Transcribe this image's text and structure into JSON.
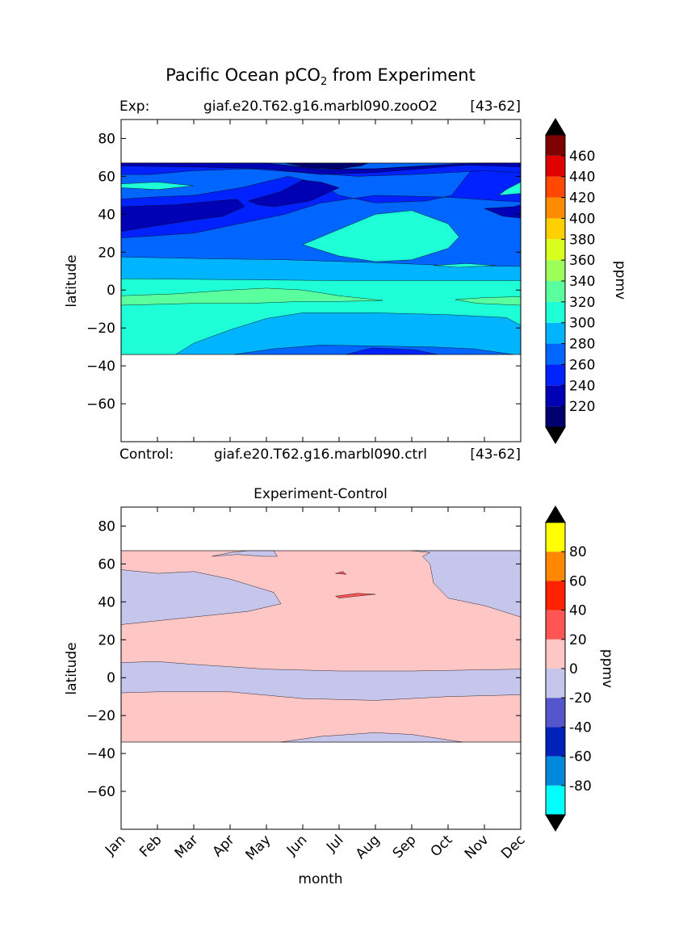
{
  "figure": {
    "title_main": "Pacific Ocean pCO",
    "title_sub": "2",
    "title_tail": " from Experiment"
  },
  "chart_data": [
    {
      "type": "heatmap",
      "name": "experiment",
      "header_left": "Exp:",
      "header_center": "giaf.e20.T62.g16.marbl090.zooO2",
      "header_right": "[43-62]",
      "footer_left": "Control:",
      "footer_center": "giaf.e20.T62.g16.marbl090.ctrl",
      "footer_right": "[43-62]",
      "ylabel": "latitude",
      "ylim": [
        -80,
        90
      ],
      "yticks": [
        80,
        60,
        40,
        20,
        0,
        -20,
        -40,
        -60
      ],
      "xlim": [
        1,
        12
      ],
      "data_lat_range": [
        -34,
        67
      ],
      "colorbar_label": "ppmv",
      "levels": [
        200,
        220,
        240,
        260,
        280,
        300,
        320,
        340,
        360,
        380,
        400,
        420,
        440,
        460,
        480
      ],
      "colorbar_ticks": [
        220,
        240,
        260,
        280,
        300,
        320,
        340,
        360,
        380,
        400,
        420,
        440,
        460
      ],
      "colors": [
        "#00006f",
        "#0000b4",
        "#0022ff",
        "#0066ff",
        "#00b4ff",
        "#1effd8",
        "#5aff9e",
        "#9eff5a",
        "#d8ff1e",
        "#ffd000",
        "#ff8c00",
        "#ff4800",
        "#e00000",
        "#7f0000"
      ],
      "under_color": "#000000",
      "over_color": "#000000",
      "bands": [
        {
          "level": 300,
          "label": "280-300",
          "points": [
            [
              1,
              -34
            ],
            [
              12,
              -34
            ],
            [
              12,
              67
            ],
            [
              1,
              67
            ]
          ]
        },
        {
          "level": 280,
          "label": "260-280",
          "points": [
            [
              4.1,
              -34
            ],
            [
              5.2,
              -31
            ],
            [
              6.5,
              -29
            ],
            [
              8,
              -29.5
            ],
            [
              9.5,
              -30
            ],
            [
              10.7,
              -31
            ],
            [
              11.8,
              -34
            ]
          ]
        },
        {
          "level": 260,
          "label": "240-260",
          "points": [
            [
              7.2,
              -34
            ],
            [
              7.9,
              -30.5
            ],
            [
              9.1,
              -31.5
            ],
            [
              9.7,
              -34
            ]
          ]
        },
        {
          "level": 280,
          "label": "260-280",
          "points": [
            [
              1,
              17.5
            ],
            [
              3.5,
              16.5
            ],
            [
              5.5,
              16
            ],
            [
              8,
              14.5
            ],
            [
              10,
              13
            ],
            [
              12,
              12.5
            ],
            [
              12,
              67
            ],
            [
              1,
              67
            ]
          ]
        },
        {
          "level": 260,
          "label": "240-260",
          "points": [
            [
              1,
              27.5
            ],
            [
              3,
              30
            ],
            [
              4.5,
              36
            ],
            [
              5.5,
              40
            ],
            [
              6.5,
              46
            ],
            [
              8,
              50
            ],
            [
              10,
              49
            ],
            [
              11.5,
              47
            ],
            [
              12,
              46.5
            ],
            [
              12,
              67
            ],
            [
              10.8,
              67
            ],
            [
              10.5,
              60
            ],
            [
              10.1,
              50
            ],
            [
              9.4,
              47
            ],
            [
              8,
              46
            ],
            [
              7,
              50
            ],
            [
              6.5,
              56
            ],
            [
              5.6,
              60
            ],
            [
              4.3,
              54
            ],
            [
              3,
              50
            ],
            [
              1.8,
              49
            ],
            [
              1,
              48
            ]
          ]
        },
        {
          "level": 260,
          "label": "240-260",
          "points": [
            [
              1,
              67
            ],
            [
              5,
              67
            ],
            [
              6.5,
              64
            ],
            [
              8,
              64
            ],
            [
              10.5,
              67
            ],
            [
              12,
              67
            ],
            [
              12,
              62
            ],
            [
              11,
              63
            ],
            [
              9,
              61
            ],
            [
              7.5,
              60
            ],
            [
              6,
              62
            ],
            [
              4.5,
              64
            ],
            [
              3,
              63
            ],
            [
              1.8,
              61
            ],
            [
              1,
              61
            ]
          ]
        },
        {
          "level": 240,
          "label": "220-240",
          "points": [
            [
              1,
              31
            ],
            [
              2,
              34
            ],
            [
              3,
              37
            ],
            [
              3.8,
              39
            ],
            [
              4.4,
              44
            ],
            [
              4.2,
              48
            ],
            [
              2.5,
              45
            ],
            [
              1,
              44
            ]
          ]
        },
        {
          "level": 240,
          "label": "220-240",
          "points": [
            [
              4.5,
              47
            ],
            [
              5.4,
              52
            ],
            [
              6,
              58
            ],
            [
              6.5,
              57
            ],
            [
              7,
              54
            ],
            [
              6.2,
              47
            ],
            [
              5.2,
              44
            ],
            [
              4.8,
              45
            ]
          ]
        },
        {
          "level": 240,
          "label": "220-240",
          "points": [
            [
              11,
              43
            ],
            [
              11.8,
              44
            ],
            [
              12,
              45
            ],
            [
              12,
              38
            ],
            [
              11.5,
              39
            ]
          ]
        },
        {
          "level": 240,
          "label": "220-240",
          "points": [
            [
              1,
              67
            ],
            [
              5,
              67
            ],
            [
              6.5,
              63.5
            ],
            [
              8,
              64
            ],
            [
              11,
              67
            ],
            [
              12,
              67
            ],
            [
              12,
              65
            ],
            [
              10.5,
              66
            ],
            [
              8,
              62
            ],
            [
              6.5,
              61
            ],
            [
              5,
              64
            ],
            [
              3,
              65
            ],
            [
              1,
              65.5
            ]
          ]
        },
        {
          "level": 220,
          "label": "200-220",
          "points": [
            [
              5.5,
              67
            ],
            [
              6.2,
              64.5
            ],
            [
              7,
              64
            ],
            [
              7.6,
              65.5
            ],
            [
              7.8,
              67
            ]
          ]
        },
        {
          "level": 320,
          "label": "300-320",
          "points": [
            [
              1,
              6
            ],
            [
              4,
              5.5
            ],
            [
              7,
              5
            ],
            [
              12,
              5
            ],
            [
              12,
              -18.5
            ],
            [
              11.6,
              -14.5
            ],
            [
              10,
              -13
            ],
            [
              8,
              -12
            ],
            [
              6,
              -12
            ],
            [
              5,
              -15
            ],
            [
              4,
              -21
            ],
            [
              3,
              -28
            ],
            [
              2.5,
              -34
            ],
            [
              1,
              -34
            ]
          ]
        },
        {
          "level": 340,
          "label": "320-340",
          "points": [
            [
              1,
              -3
            ],
            [
              2.5,
              -2
            ],
            [
              4,
              0
            ],
            [
              5,
              1
            ],
            [
              6,
              0
            ],
            [
              7,
              -3
            ],
            [
              8.2,
              -5.5
            ],
            [
              7,
              -6
            ],
            [
              6,
              -6
            ],
            [
              4.5,
              -7
            ],
            [
              3,
              -7
            ],
            [
              1,
              -8
            ]
          ]
        },
        {
          "level": 340,
          "label": "320-340",
          "points": [
            [
              10.2,
              -5
            ],
            [
              11,
              -4
            ],
            [
              12,
              -3.5
            ],
            [
              12,
              -8
            ],
            [
              10.8,
              -7
            ]
          ]
        },
        {
          "level": 320,
          "label": "300-320",
          "points": [
            [
              6,
              24
            ],
            [
              7,
              32
            ],
            [
              8,
              40
            ],
            [
              9,
              42
            ],
            [
              10,
              35
            ],
            [
              10.3,
              28
            ],
            [
              10,
              22
            ],
            [
              9,
              16
            ],
            [
              8,
              15
            ],
            [
              7,
              18
            ]
          ]
        },
        {
          "level": 320,
          "label": "300-320",
          "points": [
            [
              9.6,
              13
            ],
            [
              10.5,
              14
            ],
            [
              11.3,
              13
            ],
            [
              10.3,
              12
            ]
          ]
        },
        {
          "level": 320,
          "label": "300-320",
          "points": [
            [
              1,
              56
            ],
            [
              2,
              57
            ],
            [
              3,
              55
            ],
            [
              2,
              53
            ],
            [
              1,
              54
            ]
          ]
        },
        {
          "level": 320,
          "label": "300-320",
          "points": [
            [
              11.4,
              50
            ],
            [
              12,
              51
            ],
            [
              12,
              57
            ],
            [
              11.6,
              53
            ]
          ]
        }
      ]
    },
    {
      "type": "heatmap",
      "name": "difference",
      "title": "Experiment-Control",
      "xlabel": "month",
      "ylabel": "latitude",
      "xlim": [
        1,
        12
      ],
      "ylim": [
        -80,
        90
      ],
      "yticks": [
        80,
        60,
        40,
        20,
        0,
        -20,
        -40,
        -60
      ],
      "xticks": [
        "Jan",
        "Feb",
        "Mar",
        "Apr",
        "May",
        "Jun",
        "Jul",
        "Aug",
        "Sep",
        "Oct",
        "Nov",
        "Dec"
      ],
      "data_lat_range": [
        -34,
        67
      ],
      "colorbar_label": "ppmv",
      "levels": [
        -100,
        -80,
        -60,
        -40,
        -20,
        0,
        20,
        40,
        60,
        80,
        100
      ],
      "colorbar_ticks": [
        80,
        60,
        40,
        20,
        0,
        -20,
        -40,
        -60,
        -80
      ],
      "colors": [
        "#00ffff",
        "#0088dd",
        "#0022bb",
        "#5555cc",
        "#c6c6ec",
        "#ffc6c6",
        "#ff5555",
        "#ff2200",
        "#ff8800",
        "#ffff00"
      ],
      "under_color": "#000000",
      "over_color": "#000000",
      "bands": [
        {
          "level": 20,
          "label": "0-20",
          "points": [
            [
              1,
              -34
            ],
            [
              12,
              -34
            ],
            [
              12,
              67
            ],
            [
              1,
              67
            ]
          ]
        },
        {
          "level": 0,
          "label": "-20-0",
          "points": [
            [
              1,
              8
            ],
            [
              2,
              8.5
            ],
            [
              3,
              7
            ],
            [
              5,
              4.5
            ],
            [
              7,
              3.5
            ],
            [
              9,
              3.5
            ],
            [
              12,
              4.5
            ],
            [
              12,
              -9
            ],
            [
              10,
              -10
            ],
            [
              8,
              -12
            ],
            [
              6,
              -11
            ],
            [
              4,
              -7.5
            ],
            [
              2,
              -7.5
            ],
            [
              1,
              -8
            ]
          ]
        },
        {
          "level": 0,
          "label": "-20-0",
          "points": [
            [
              1,
              28
            ],
            [
              3,
              32
            ],
            [
              4.5,
              35
            ],
            [
              5.4,
              39
            ],
            [
              5.2,
              45
            ],
            [
              4,
              52
            ],
            [
              3,
              56
            ],
            [
              2,
              55
            ],
            [
              1,
              57
            ]
          ]
        },
        {
          "level": 0,
          "label": "-20-0",
          "points": [
            [
              4.5,
              67
            ],
            [
              5.2,
              67
            ],
            [
              5.3,
              64
            ],
            [
              4.9,
              64
            ],
            [
              4.2,
              65
            ],
            [
              3.5,
              64
            ],
            [
              4,
              66
            ]
          ]
        },
        {
          "level": 0,
          "label": "-20-0",
          "points": [
            [
              9,
              67
            ],
            [
              12,
              67
            ],
            [
              12,
              32
            ],
            [
              11,
              38
            ],
            [
              10,
              42
            ],
            [
              9.6,
              50
            ],
            [
              9.5,
              60
            ],
            [
              9.3,
              64
            ],
            [
              9.5,
              66
            ]
          ]
        },
        {
          "level": 0,
          "label": "-20-0",
          "points": [
            [
              5.4,
              -34
            ],
            [
              6.5,
              -31
            ],
            [
              8,
              -29
            ],
            [
              9,
              -30
            ],
            [
              10.4,
              -34
            ]
          ]
        },
        {
          "level": 40,
          "label": "20-40",
          "points": [
            [
              6.9,
              43
            ],
            [
              7.5,
              44.5
            ],
            [
              8,
              44
            ],
            [
              7.5,
              43
            ],
            [
              7,
              42
            ]
          ]
        },
        {
          "level": 40,
          "label": "20-40",
          "points": [
            [
              6.9,
              55
            ],
            [
              7.1,
              56
            ],
            [
              7.2,
              54.5
            ]
          ]
        }
      ]
    }
  ]
}
